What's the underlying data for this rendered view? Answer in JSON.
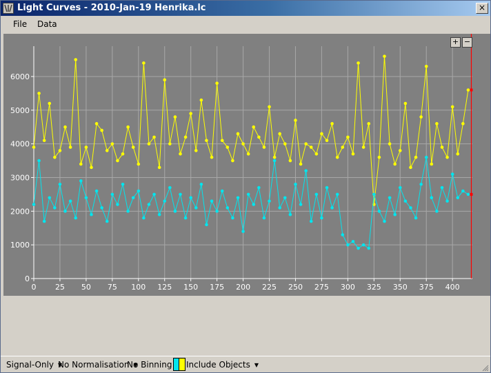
{
  "window": {
    "title": "Light Curves - 2010-Jan-19 Henrika.lc",
    "close_label": "×"
  },
  "menu": {
    "file": "File",
    "data": "Data"
  },
  "zoom": {
    "in": "+",
    "out": "−"
  },
  "statusbar": {
    "signal": "Signal-Only",
    "normalisation": "No Normalisation",
    "binning": "No Binning",
    "include": "Include Objects",
    "swatch_colors": [
      "#00e5ee",
      "#ffff00"
    ]
  },
  "chart_data": {
    "type": "line",
    "xlim": [
      0,
      419
    ],
    "ylim": [
      0,
      6900
    ],
    "xticks": [
      0,
      25,
      50,
      75,
      100,
      125,
      150,
      175,
      200,
      225,
      250,
      275,
      300,
      325,
      350,
      375,
      400
    ],
    "yticks": [
      0,
      1000,
      2000,
      3000,
      4000,
      5000,
      6000
    ],
    "grid": true,
    "legend": "none",
    "background": "#808080",
    "cursor_x": 418,
    "series": [
      {
        "color": "#ffff00",
        "x": [
          0,
          5,
          10,
          15,
          20,
          25,
          30,
          35,
          40,
          45,
          50,
          55,
          60,
          65,
          70,
          75,
          80,
          85,
          90,
          95,
          100,
          105,
          110,
          115,
          120,
          125,
          130,
          135,
          140,
          145,
          150,
          155,
          160,
          165,
          170,
          175,
          180,
          185,
          190,
          195,
          200,
          205,
          210,
          215,
          220,
          225,
          230,
          235,
          240,
          245,
          250,
          255,
          260,
          265,
          270,
          275,
          280,
          285,
          290,
          295,
          300,
          305,
          310,
          315,
          320,
          325,
          330,
          335,
          340,
          345,
          350,
          355,
          360,
          365,
          370,
          375,
          380,
          385,
          390,
          395,
          400,
          405,
          410,
          415
        ],
        "values": [
          3900,
          5500,
          4100,
          5200,
          3600,
          3800,
          4500,
          3900,
          6500,
          3400,
          3900,
          3300,
          4600,
          4400,
          3800,
          4000,
          3500,
          3700,
          4500,
          3900,
          3400,
          6400,
          4000,
          4200,
          3300,
          5900,
          4000,
          4800,
          3700,
          4200,
          4900,
          3800,
          5300,
          4100,
          3600,
          5800,
          4100,
          3900,
          3500,
          4300,
          4000,
          3700,
          4500,
          4200,
          3900,
          5100,
          3600,
          4300,
          4000,
          3500,
          4700,
          3400,
          4000,
          3900,
          3700,
          4300,
          4100,
          4600,
          3600,
          3900,
          4200,
          3700,
          6400,
          3900,
          4600,
          2200,
          3600,
          6600,
          4000,
          3400,
          3800,
          5200,
          3300,
          3600,
          4800,
          6300,
          3400,
          4600,
          3900,
          3600,
          5100,
          3700,
          4600,
          5600
        ]
      },
      {
        "color": "#00e5ee",
        "x": [
          0,
          5,
          10,
          15,
          20,
          25,
          30,
          35,
          40,
          45,
          50,
          55,
          60,
          65,
          70,
          75,
          80,
          85,
          90,
          95,
          100,
          105,
          110,
          115,
          120,
          125,
          130,
          135,
          140,
          145,
          150,
          155,
          160,
          165,
          170,
          175,
          180,
          185,
          190,
          195,
          200,
          205,
          210,
          215,
          220,
          225,
          230,
          235,
          240,
          245,
          250,
          255,
          260,
          265,
          270,
          275,
          280,
          285,
          290,
          295,
          300,
          305,
          310,
          315,
          320,
          325,
          330,
          335,
          340,
          345,
          350,
          355,
          360,
          365,
          370,
          375,
          380,
          385,
          390,
          395,
          400,
          405,
          410,
          415
        ],
        "values": [
          2200,
          3500,
          1700,
          2400,
          2100,
          2800,
          2000,
          2300,
          1800,
          2900,
          2400,
          1900,
          2600,
          2100,
          1700,
          2500,
          2200,
          2800,
          2000,
          2400,
          2600,
          1800,
          2200,
          2500,
          1900,
          2300,
          2700,
          2000,
          2500,
          1800,
          2400,
          2100,
          2800,
          1600,
          2300,
          2000,
          2600,
          2100,
          1800,
          2400,
          1400,
          2500,
          2200,
          2700,
          1800,
          2300,
          3500,
          2100,
          2400,
          1900,
          2800,
          2200,
          3200,
          1700,
          2500,
          1800,
          2700,
          2100,
          2500,
          1300,
          1000,
          1100,
          900,
          1000,
          900,
          2500,
          2000,
          1700,
          2400,
          1900,
          2700,
          2300,
          2100,
          1800,
          2800,
          3600,
          2400,
          2000,
          2700,
          2300,
          3100,
          2400,
          2600,
          2500
        ]
      }
    ]
  }
}
